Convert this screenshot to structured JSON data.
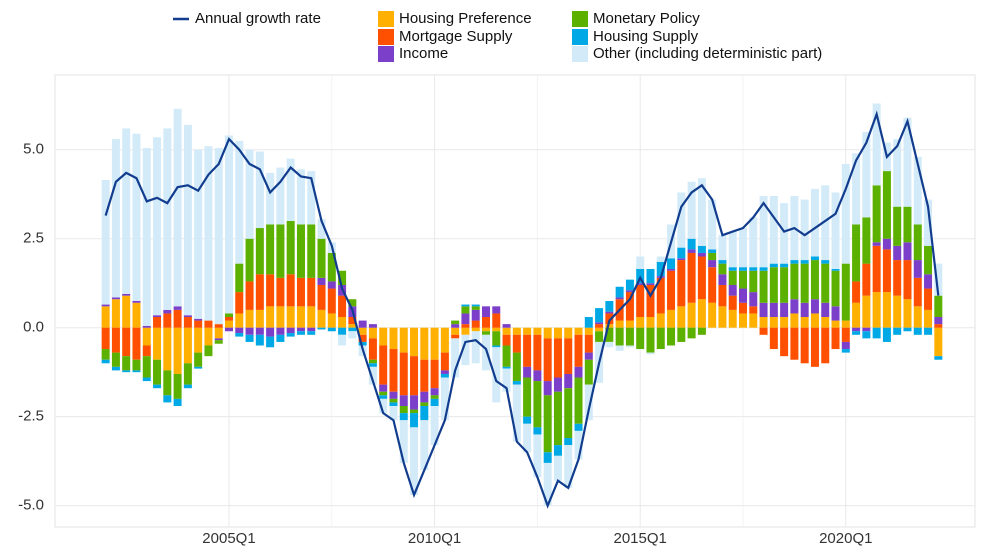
{
  "chart_data": {
    "type": "bar",
    "stacked": true,
    "categories": [
      null,
      null,
      null,
      null,
      null,
      null,
      null,
      null,
      null,
      null,
      null,
      null,
      "2005Q1",
      null,
      null,
      null,
      null,
      null,
      null,
      null,
      null,
      null,
      null,
      null,
      null,
      null,
      null,
      null,
      null,
      null,
      null,
      null,
      "2010Q1",
      null,
      null,
      null,
      null,
      null,
      null,
      null,
      null,
      null,
      null,
      null,
      null,
      null,
      null,
      null,
      null,
      null,
      null,
      null,
      "2015Q1",
      null,
      null,
      null,
      null,
      null,
      null,
      null,
      null,
      null,
      null,
      null,
      null,
      null,
      null,
      null,
      null,
      null,
      null,
      null,
      "2020Q1",
      null,
      null,
      null,
      null,
      null,
      null,
      null,
      null,
      null
    ],
    "series": [
      {
        "name": "Housing Preference",
        "color": "#ffb000",
        "values": [
          0.6,
          0.8,
          0.9,
          0.7,
          -0.5,
          -0.9,
          -1.2,
          -1.3,
          -1.0,
          -0.7,
          -0.5,
          -0.3,
          0.2,
          0.4,
          0.5,
          0.5,
          0.6,
          0.6,
          0.6,
          0.6,
          0.6,
          0.5,
          0.4,
          0.3,
          0.1,
          -0.2,
          -0.3,
          -0.5,
          -0.6,
          -0.7,
          -0.8,
          -0.9,
          -0.9,
          -0.7,
          -0.2,
          -0.2,
          -0.1,
          -0.1,
          -0.1,
          -0.2,
          -0.2,
          -0.2,
          -0.2,
          -0.3,
          -0.3,
          -0.3,
          -0.2,
          -0.2,
          -0.1,
          0.1,
          0.2,
          0.2,
          0.3,
          0.3,
          0.4,
          0.5,
          0.6,
          0.7,
          0.8,
          0.7,
          0.6,
          0.5,
          0.4,
          0.4,
          0.3,
          0.3,
          0.3,
          0.4,
          0.3,
          0.4,
          0.3,
          0.2,
          0.2,
          0.7,
          0.9,
          1.0,
          1.0,
          0.9,
          0.8,
          0.6,
          0.5,
          -0.8
        ]
      },
      {
        "name": "Mortgage Supply",
        "color": "#ff4f00",
        "values": [
          -0.6,
          -0.7,
          -0.8,
          -0.9,
          -0.3,
          0.3,
          0.4,
          0.5,
          0.3,
          0.2,
          0.2,
          0.1,
          0.1,
          0.6,
          0.8,
          1.0,
          0.9,
          0.8,
          0.9,
          0.8,
          0.8,
          0.7,
          0.7,
          0.6,
          0.2,
          -0.2,
          -0.6,
          -1.1,
          -1.2,
          -1.2,
          -1.1,
          -0.9,
          -0.8,
          -0.5,
          -0.1,
          0.1,
          0.2,
          0.3,
          0.4,
          -0.3,
          -0.5,
          -0.9,
          -1.0,
          -1.2,
          -1.1,
          -1.0,
          -0.9,
          -0.5,
          0.1,
          0.3,
          0.6,
          0.8,
          0.9,
          0.9,
          1.0,
          1.1,
          1.3,
          1.4,
          1.2,
          1.0,
          0.6,
          0.4,
          0.3,
          0.2,
          -0.2,
          -0.6,
          -0.8,
          -0.9,
          -1.0,
          -1.1,
          -1.0,
          -0.6,
          -0.4,
          0.6,
          0.9,
          1.3,
          1.2,
          1.0,
          1.1,
          0.8,
          0.6,
          0.1
        ]
      },
      {
        "name": "Income",
        "color": "#7b3fc9",
        "values": [
          0.05,
          0.05,
          0.05,
          0.05,
          0.05,
          0.05,
          0.1,
          0.1,
          0.05,
          0.05,
          0,
          -0.05,
          -0.1,
          -0.15,
          -0.2,
          -0.2,
          -0.25,
          -0.2,
          -0.15,
          -0.1,
          -0.1,
          0.2,
          0.2,
          0.3,
          0.3,
          0.2,
          0.1,
          -0.2,
          -0.2,
          -0.3,
          -0.4,
          -0.3,
          -0.2,
          -0.1,
          0.1,
          0.3,
          0.3,
          0.3,
          0.2,
          0.1,
          0,
          -0.3,
          -0.3,
          -0.4,
          -0.4,
          -0.4,
          -0.3,
          -0.2,
          0.05,
          0.05,
          0.05,
          0.05,
          0.05,
          0.05,
          0.05,
          0.05,
          0.05,
          0.1,
          0.1,
          0.2,
          0.3,
          0.3,
          0.4,
          0.4,
          0.4,
          0.4,
          0.4,
          0.4,
          0.4,
          0.4,
          0.4,
          0.4,
          -0.2,
          -0.1,
          -0.1,
          0.1,
          0.3,
          0.4,
          0.5,
          0.5,
          0.4,
          0.2
        ]
      },
      {
        "name": "Monetary Policy",
        "color": "#5cb000",
        "values": [
          -0.3,
          -0.4,
          -0.4,
          -0.3,
          -0.6,
          -0.7,
          -0.7,
          -0.7,
          -0.6,
          -0.4,
          -0.3,
          -0.1,
          0.1,
          0.8,
          1.2,
          1.3,
          1.4,
          1.5,
          1.5,
          1.5,
          1.5,
          1.1,
          0.8,
          0.4,
          0.2,
          0,
          -0.1,
          -0.1,
          -0.1,
          -0.2,
          -0.1,
          -0.1,
          -0.1,
          0,
          0.1,
          0.2,
          0.1,
          -0.1,
          -0.4,
          -0.6,
          -0.8,
          -1.1,
          -1.3,
          -1.6,
          -1.5,
          -1.4,
          -1.3,
          -0.7,
          -0.3,
          -0.4,
          -0.5,
          -0.5,
          -0.6,
          -0.7,
          -0.6,
          -0.5,
          -0.4,
          -0.3,
          -0.2,
          0.2,
          0.3,
          0.4,
          0.5,
          0.6,
          0.9,
          1.0,
          1.0,
          1.0,
          1.1,
          1.1,
          1.1,
          1.0,
          1.6,
          1.6,
          1.3,
          1.6,
          1.9,
          1.1,
          1.0,
          1.0,
          0.8,
          0.6
        ]
      },
      {
        "name": "Housing Supply",
        "color": "#00a9e6",
        "values": [
          -0.1,
          -0.1,
          -0.05,
          -0.05,
          -0.1,
          -0.1,
          -0.2,
          -0.2,
          -0.1,
          -0.05,
          0,
          0,
          0,
          -0.1,
          -0.2,
          -0.3,
          -0.3,
          -0.2,
          -0.1,
          -0.1,
          -0.1,
          -0.05,
          -0.1,
          -0.2,
          -0.1,
          -0.1,
          -0.1,
          -0.1,
          -0.1,
          -0.2,
          -0.4,
          -0.4,
          -0.2,
          -0.1,
          0,
          0.05,
          0.05,
          0,
          -0.05,
          -0.05,
          -0.1,
          -0.2,
          -0.2,
          -0.3,
          -0.3,
          -0.2,
          -0.2,
          0.3,
          0.4,
          0.3,
          0.3,
          0.3,
          0.4,
          0.4,
          0.4,
          0.3,
          0.3,
          0.3,
          0.2,
          0.1,
          0.1,
          0.1,
          0.1,
          0.1,
          0.1,
          0.1,
          0.1,
          0.1,
          0.1,
          0.1,
          0.1,
          0.05,
          -0.1,
          -0.1,
          -0.2,
          -0.3,
          -0.4,
          -0.2,
          -0.1,
          -0.2,
          -0.2,
          -0.1
        ]
      },
      {
        "name": "Other (including deterministic part)",
        "color": "#d3ebf8",
        "values": [
          3.5,
          4.45,
          4.65,
          4.7,
          5.0,
          5.0,
          5.1,
          5.55,
          5.35,
          4.75,
          4.9,
          4.95,
          5.0,
          3.45,
          2.5,
          2.15,
          1.45,
          1.6,
          1.75,
          1.55,
          1.5,
          0.55,
          0.3,
          -0.3,
          -0.2,
          -0.3,
          -0.5,
          -0.4,
          -0.4,
          -1.2,
          -1.9,
          -1.4,
          -1.1,
          -1.2,
          -1.1,
          -0.85,
          -0.9,
          -1.0,
          -1.55,
          -0.65,
          -1.6,
          -0.8,
          -1.2,
          -1.2,
          -0.7,
          -1.2,
          -0.8,
          -1.0,
          -1.15,
          -0.15,
          -0.15,
          -0.05,
          0.35,
          -0.05,
          0.15,
          0.95,
          1.55,
          1.6,
          1.9,
          1.4,
          0.7,
          1.0,
          1.1,
          1.4,
          2.0,
          1.9,
          1.7,
          1.8,
          1.7,
          1.9,
          2.1,
          2.15,
          2.8,
          2.0,
          2.4,
          2.3,
          0.8,
          1.9,
          2.5,
          1.9,
          1.3,
          0.9
        ]
      },
      {
        "name": "Annual growth rate",
        "color": "#123d8f",
        "type": "line",
        "values": [
          3.15,
          4.1,
          4.35,
          4.2,
          3.55,
          3.65,
          3.5,
          3.95,
          4.0,
          3.85,
          4.3,
          4.6,
          5.3,
          5.0,
          4.6,
          4.45,
          3.8,
          4.1,
          4.5,
          4.25,
          4.2,
          3.0,
          2.3,
          1.1,
          0.5,
          -0.6,
          -1.5,
          -2.4,
          -2.6,
          -3.8,
          -4.7,
          -4.0,
          -3.3,
          -2.6,
          -1.2,
          -0.4,
          -0.35,
          -0.6,
          -1.5,
          -1.7,
          -3.2,
          -3.5,
          -4.2,
          -5.0,
          -4.3,
          -4.5,
          -3.7,
          -2.3,
          -1.0,
          0.2,
          0.5,
          0.8,
          1.4,
          0.9,
          1.4,
          2.4,
          3.4,
          3.8,
          4.0,
          3.6,
          2.6,
          2.7,
          2.8,
          3.1,
          3.5,
          3.1,
          2.7,
          2.8,
          2.6,
          2.8,
          3.0,
          3.2,
          3.9,
          4.7,
          5.2,
          6.0,
          4.8,
          5.1,
          5.8,
          4.6,
          3.4,
          0.9
        ]
      }
    ],
    "ylim": [
      -5.6,
      7.1
    ],
    "yticks": [
      {
        "value": -5,
        "label": "-5.0"
      },
      -2.5,
      {
        "value": 0,
        "label": "0.0"
      },
      2.5,
      {
        "value": 5,
        "label": "5.0"
      }
    ],
    "grid": true,
    "legend": "top"
  }
}
